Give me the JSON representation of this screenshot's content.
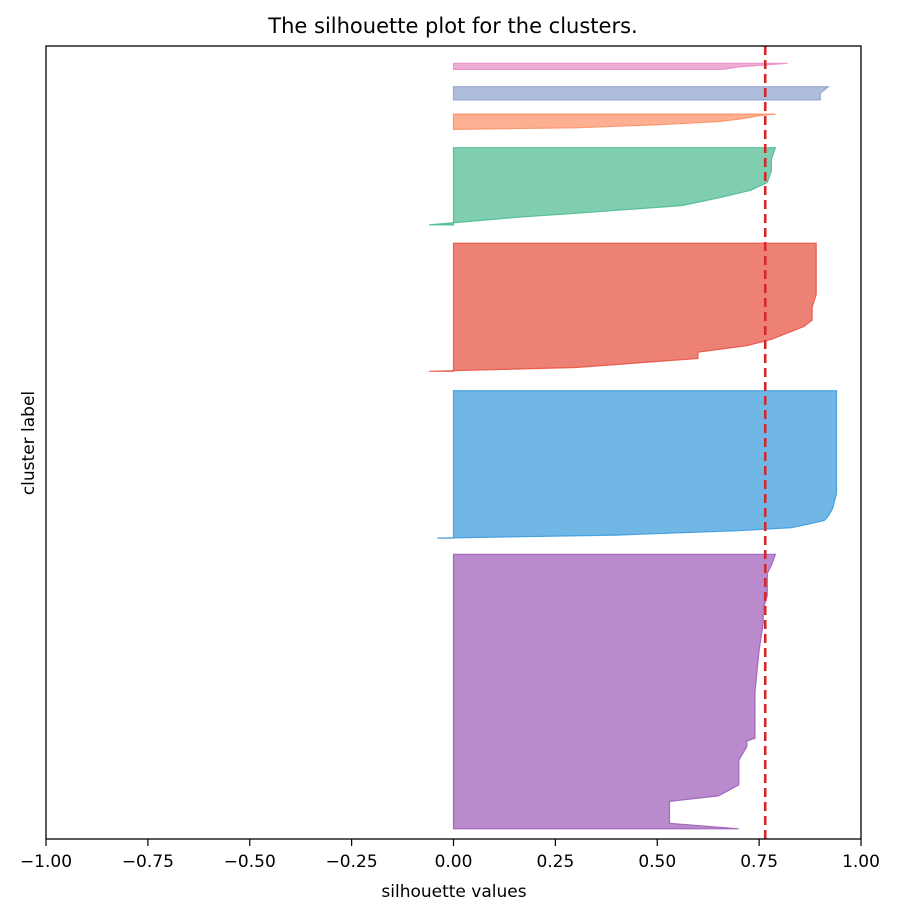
{
  "chart_data": {
    "type": "area",
    "title": "The silhouette plot for the clusters.",
    "xlabel": "silhouette values",
    "ylabel": "cluster label",
    "xlim": [
      -1.0,
      1.0
    ],
    "ylim": [
      0,
      780
    ],
    "xticks": [
      -1.0,
      -0.75,
      -0.5,
      -0.25,
      0.0,
      0.25,
      0.5,
      0.75,
      1.0
    ],
    "xtick_labels": [
      "−1.00",
      "−0.75",
      "−0.50",
      "−0.25",
      "0.00",
      "0.25",
      "0.50",
      "0.75",
      "1.00"
    ],
    "yticks": [],
    "grid": false,
    "average_silhouette": 0.765,
    "average_line_color": "#d62728",
    "series": [
      {
        "color": "#9b59b6",
        "profile": [
          [
            0,
            0.7
          ],
          [
            0.02,
            0.53
          ],
          [
            0.05,
            0.53
          ],
          [
            0.08,
            0.53
          ],
          [
            0.1,
            0.53
          ],
          [
            0.12,
            0.65
          ],
          [
            0.16,
            0.7
          ],
          [
            0.25,
            0.7
          ],
          [
            0.3,
            0.72
          ],
          [
            0.32,
            0.72
          ],
          [
            0.33,
            0.74
          ],
          [
            0.37,
            0.74
          ],
          [
            0.4,
            0.74
          ],
          [
            0.5,
            0.74
          ],
          [
            0.65,
            0.75
          ],
          [
            0.75,
            0.76
          ],
          [
            0.8,
            0.76
          ],
          [
            0.85,
            0.77
          ],
          [
            0.9,
            0.77
          ],
          [
            0.93,
            0.77
          ],
          [
            0.96,
            0.78
          ],
          [
            1.0,
            0.79
          ]
        ],
        "y_bottom": 10,
        "y_top": 280
      },
      {
        "color": "#3498db",
        "profile": [
          [
            0,
            -0.04
          ],
          [
            0.02,
            0.4
          ],
          [
            0.05,
            0.7
          ],
          [
            0.07,
            0.83
          ],
          [
            0.1,
            0.88
          ],
          [
            0.12,
            0.91
          ],
          [
            0.15,
            0.92
          ],
          [
            0.2,
            0.93
          ],
          [
            0.3,
            0.94
          ],
          [
            0.5,
            0.94
          ],
          [
            1.0,
            0.94
          ]
        ],
        "y_bottom": 296,
        "y_top": 441
      },
      {
        "color": "#e74c3c",
        "profile": [
          [
            0,
            -0.06
          ],
          [
            0.03,
            0.3
          ],
          [
            0.06,
            0.43
          ],
          [
            0.1,
            0.6
          ],
          [
            0.15,
            0.6
          ],
          [
            0.2,
            0.72
          ],
          [
            0.25,
            0.78
          ],
          [
            0.3,
            0.82
          ],
          [
            0.35,
            0.86
          ],
          [
            0.4,
            0.88
          ],
          [
            0.5,
            0.88
          ],
          [
            0.6,
            0.89
          ],
          [
            0.7,
            0.89
          ],
          [
            1.0,
            0.89
          ]
        ],
        "y_bottom": 460,
        "y_top": 586
      },
      {
        "color": "#48b98f",
        "profile": [
          [
            0,
            -0.06
          ],
          [
            0.1,
            0.16
          ],
          [
            0.15,
            0.3
          ],
          [
            0.25,
            0.56
          ],
          [
            0.35,
            0.65
          ],
          [
            0.45,
            0.73
          ],
          [
            0.55,
            0.77
          ],
          [
            0.7,
            0.78
          ],
          [
            0.85,
            0.78
          ],
          [
            1.0,
            0.79
          ]
        ],
        "y_bottom": 604,
        "y_top": 680
      },
      {
        "color": "#fc8d62",
        "profile": [
          [
            0,
            0.0
          ],
          [
            0.1,
            0.3
          ],
          [
            0.3,
            0.5
          ],
          [
            0.5,
            0.65
          ],
          [
            0.7,
            0.71
          ],
          [
            0.9,
            0.75
          ],
          [
            1.0,
            0.79
          ]
        ],
        "y_bottom": 698,
        "y_top": 713
      },
      {
        "color": "#8da0cb",
        "profile": [
          [
            0,
            0.9
          ],
          [
            0.5,
            0.9
          ],
          [
            1.0,
            0.92
          ]
        ],
        "y_bottom": 727,
        "y_top": 740
      },
      {
        "color": "#e78ac3",
        "profile": [
          [
            0,
            0.66
          ],
          [
            0.4,
            0.7
          ],
          [
            0.7,
            0.76
          ],
          [
            1.0,
            0.82
          ]
        ],
        "y_bottom": 757,
        "y_top": 763
      }
    ]
  }
}
